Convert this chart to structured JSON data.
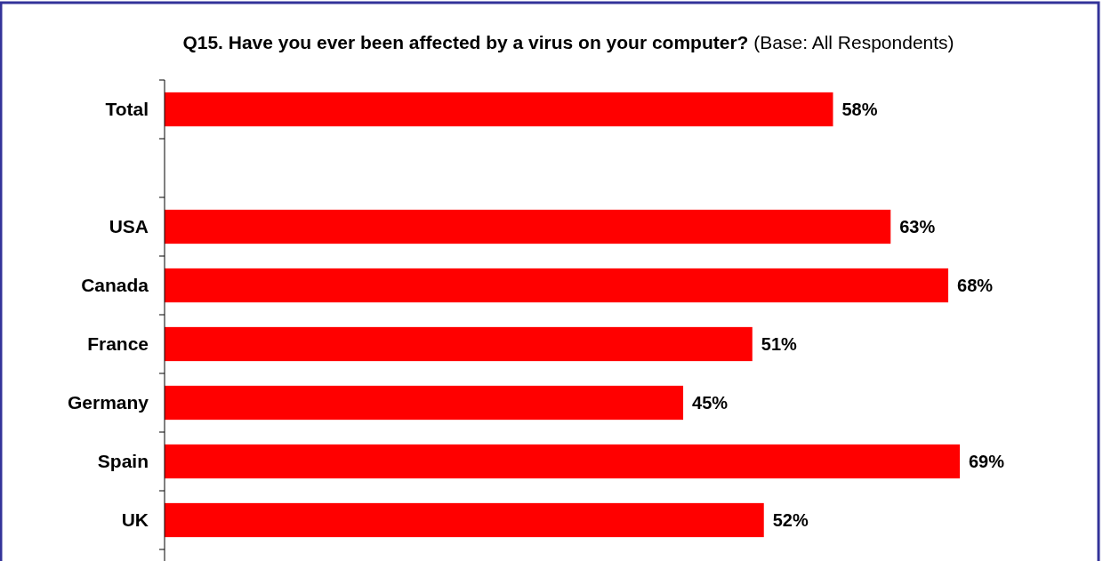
{
  "chart_data": {
    "type": "bar",
    "orientation": "horizontal",
    "title": "Q15. Have you ever been affected by a virus on your computer?",
    "subtitle": "(Base: All Respondents)",
    "categories": [
      "Total",
      null,
      "USA",
      "Canada",
      "France",
      "Germany",
      "Spain",
      "UK"
    ],
    "values": [
      58,
      null,
      63,
      68,
      51,
      45,
      69,
      52
    ],
    "value_labels": [
      "58%",
      null,
      "63%",
      "68%",
      "51%",
      "45%",
      "69%",
      "52%"
    ],
    "color": "#ff0000"
  }
}
